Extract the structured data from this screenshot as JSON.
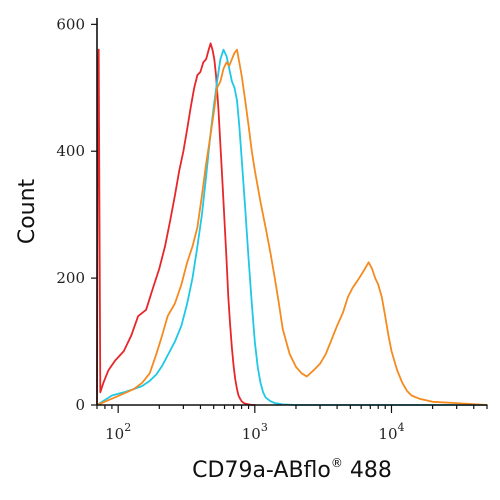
{
  "chart_data": {
    "type": "line",
    "title": "",
    "xlabel": "CD79a-ABflo",
    "xlabel_sup": "®",
    "xlabel_suffix": " 488",
    "ylabel": "Count",
    "xscale": "log",
    "xlim": [
      70,
      50000
    ],
    "ylim": [
      0,
      610
    ],
    "yticks": [
      0,
      200,
      400,
      600
    ],
    "xticks": [
      {
        "value": 100,
        "base": "10",
        "exp": "2"
      },
      {
        "value": 1000,
        "base": "10",
        "exp": "3"
      },
      {
        "value": 10000,
        "base": "10",
        "exp": "4"
      }
    ],
    "grid": false,
    "legend": "none",
    "series": [
      {
        "color": "#e8262a",
        "x": [
          70,
          71,
          72,
          74,
          78,
          85,
          95,
          110,
          125,
          140,
          160,
          180,
          200,
          220,
          240,
          260,
          280,
          300,
          320,
          340,
          360,
          380,
          400,
          420,
          440,
          460,
          475,
          490,
          505,
          520,
          540,
          560,
          580,
          600,
          620,
          640,
          660,
          680,
          700,
          720,
          740,
          760,
          780,
          800,
          830,
          860,
          900,
          950,
          1000
        ],
        "y": [
          0,
          520,
          560,
          20,
          35,
          55,
          70,
          85,
          110,
          140,
          150,
          185,
          215,
          250,
          290,
          330,
          370,
          400,
          435,
          470,
          500,
          520,
          525,
          540,
          545,
          560,
          570,
          560,
          545,
          520,
          470,
          410,
          350,
          290,
          230,
          170,
          125,
          90,
          60,
          40,
          25,
          15,
          10,
          6,
          3,
          2,
          1,
          0,
          0
        ]
      },
      {
        "color": "#1ec8e6",
        "x": [
          70,
          90,
          110,
          130,
          150,
          170,
          190,
          210,
          230,
          260,
          290,
          320,
          350,
          380,
          410,
          440,
          470,
          500,
          530,
          560,
          590,
          620,
          650,
          680,
          710,
          740,
          770,
          800,
          850,
          900,
          950,
          1000,
          1050,
          1100,
          1150,
          1200,
          1300,
          1400,
          1500,
          1600,
          2000,
          3000,
          50000
        ],
        "y": [
          0,
          15,
          20,
          25,
          30,
          38,
          48,
          62,
          78,
          100,
          125,
          160,
          200,
          250,
          300,
          360,
          420,
          470,
          510,
          545,
          560,
          550,
          530,
          510,
          500,
          480,
          440,
          390,
          310,
          230,
          160,
          100,
          60,
          35,
          20,
          12,
          6,
          3,
          2,
          1,
          0,
          0,
          0
        ]
      },
      {
        "color": "#f58a1f",
        "x": [
          70,
          90,
          110,
          130,
          150,
          170,
          190,
          210,
          230,
          260,
          290,
          320,
          350,
          380,
          410,
          440,
          470,
          500,
          530,
          560,
          590,
          620,
          650,
          680,
          710,
          740,
          770,
          800,
          850,
          900,
          950,
          1000,
          1100,
          1200,
          1300,
          1400,
          1500,
          1600,
          1800,
          2000,
          2200,
          2400,
          2700,
          3000,
          3300,
          3600,
          4000,
          4400,
          4800,
          5200,
          5600,
          6000,
          6400,
          6800,
          7200,
          7600,
          8000,
          8500,
          9000,
          9500,
          10000,
          11000,
          12000,
          13000,
          14000,
          16000,
          20000,
          30000,
          50000
        ],
        "y": [
          0,
          10,
          18,
          25,
          35,
          50,
          80,
          110,
          140,
          160,
          190,
          225,
          250,
          280,
          330,
          380,
          420,
          460,
          500,
          510,
          530,
          540,
          535,
          545,
          555,
          560,
          540,
          520,
          480,
          440,
          400,
          370,
          320,
          280,
          240,
          200,
          160,
          120,
          80,
          60,
          50,
          45,
          55,
          65,
          80,
          100,
          125,
          145,
          170,
          185,
          195,
          205,
          215,
          225,
          215,
          200,
          190,
          170,
          140,
          110,
          85,
          55,
          35,
          22,
          15,
          10,
          5,
          3,
          0
        ]
      }
    ]
  }
}
